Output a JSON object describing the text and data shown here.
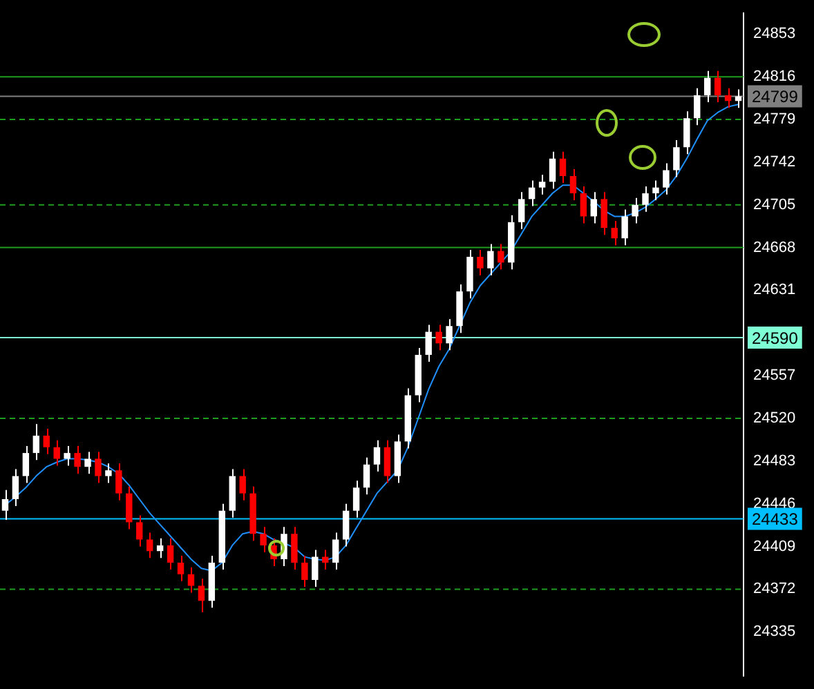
{
  "chart_data": {
    "type": "candlestick",
    "tick_labels": "y",
    "grid": false,
    "legend": false,
    "categories": [
      null,
      null,
      null,
      null,
      null,
      null,
      null,
      null,
      null,
      null,
      null,
      null,
      null,
      null,
      null,
      null,
      null,
      null,
      null,
      null,
      null,
      null,
      null,
      null,
      null,
      null,
      null,
      null,
      null,
      null,
      null,
      null,
      null,
      null,
      null,
      null,
      null,
      null,
      null,
      null,
      null,
      null,
      null,
      null,
      null,
      null,
      null,
      null,
      null,
      null,
      null,
      null,
      null,
      null,
      null,
      null,
      null,
      null,
      null,
      null,
      null,
      null,
      null,
      null,
      null,
      null,
      null,
      null,
      null,
      null,
      null,
      null
    ],
    "ylim": [
      24297,
      24871
    ],
    "yticks": [
      24335,
      24372,
      24409,
      24446,
      24483,
      24520,
      24557,
      24631,
      24668,
      24705,
      24742,
      24779,
      24816,
      24853
    ],
    "ohlc": [
      [
        24440,
        24458,
        24432,
        24450
      ],
      [
        24450,
        24476,
        24444,
        24470
      ],
      [
        24470,
        24496,
        24464,
        24490
      ],
      [
        24490,
        24515,
        24484,
        24505
      ],
      [
        24505,
        24511,
        24489,
        24495
      ],
      [
        24495,
        24501,
        24479,
        24485
      ],
      [
        24485,
        24496,
        24479,
        24490
      ],
      [
        24490,
        24496,
        24472,
        24478
      ],
      [
        24478,
        24491,
        24472,
        24485
      ],
      [
        24485,
        24491,
        24464,
        24470
      ],
      [
        24470,
        24481,
        24464,
        24475
      ],
      [
        24475,
        24481,
        24449,
        24455
      ],
      [
        24455,
        24461,
        24424,
        24430
      ],
      [
        24430,
        24436,
        24409,
        24415
      ],
      [
        24415,
        24421,
        24399,
        24405
      ],
      [
        24405,
        24416,
        24399,
        24410
      ],
      [
        24410,
        24416,
        24389,
        24395
      ],
      [
        24395,
        24401,
        24379,
        24385
      ],
      [
        24385,
        24391,
        24369,
        24375
      ],
      [
        24375,
        24381,
        24352,
        24362
      ],
      [
        24362,
        24401,
        24356,
        24395
      ],
      [
        24395,
        24446,
        24389,
        24440
      ],
      [
        24440,
        24476,
        24434,
        24470
      ],
      [
        24470,
        24476,
        24449,
        24455
      ],
      [
        24455,
        24461,
        24414,
        24420
      ],
      [
        24420,
        24426,
        24404,
        24410
      ],
      [
        24410,
        24416,
        24392,
        24398
      ],
      [
        24398,
        24426,
        24392,
        24420
      ],
      [
        24420,
        24426,
        24389,
        24395
      ],
      [
        24395,
        24401,
        24374,
        24380
      ],
      [
        24380,
        24406,
        24374,
        24400
      ],
      [
        24400,
        24406,
        24389,
        24395
      ],
      [
        24395,
        24421,
        24389,
        24415
      ],
      [
        24415,
        24446,
        24409,
        24440
      ],
      [
        24440,
        24466,
        24434,
        24460
      ],
      [
        24460,
        24486,
        24454,
        24480
      ],
      [
        24480,
        24501,
        24474,
        24495
      ],
      [
        24495,
        24501,
        24464,
        24470
      ],
      [
        24470,
        24506,
        24464,
        24500
      ],
      [
        24500,
        24546,
        24494,
        24540
      ],
      [
        24540,
        24581,
        24534,
        24575
      ],
      [
        24575,
        24601,
        24569,
        24595
      ],
      [
        24595,
        24601,
        24579,
        24585
      ],
      [
        24585,
        24606,
        24579,
        24600
      ],
      [
        24600,
        24636,
        24594,
        24630
      ],
      [
        24630,
        24666,
        24624,
        24660
      ],
      [
        24660,
        24666,
        24644,
        24650
      ],
      [
        24650,
        24671,
        24644,
        24665
      ],
      [
        24665,
        24671,
        24649,
        24655
      ],
      [
        24655,
        24696,
        24649,
        24690
      ],
      [
        24690,
        24716,
        24684,
        24710
      ],
      [
        24710,
        24726,
        24704,
        24720
      ],
      [
        24720,
        24731,
        24714,
        24725
      ],
      [
        24725,
        24751,
        24719,
        24745
      ],
      [
        24745,
        24751,
        24724,
        24730
      ],
      [
        24730,
        24736,
        24709,
        24715
      ],
      [
        24715,
        24721,
        24689,
        24695
      ],
      [
        24695,
        24716,
        24689,
        24710
      ],
      [
        24710,
        24716,
        24679,
        24685
      ],
      [
        24685,
        24691,
        24670,
        24676
      ],
      [
        24676,
        24701,
        24670,
        24695
      ],
      [
        24695,
        24711,
        24689,
        24705
      ],
      [
        24705,
        24721,
        24699,
        24715
      ],
      [
        24715,
        24726,
        24709,
        24720
      ],
      [
        24720,
        24741,
        24714,
        24735
      ],
      [
        24735,
        24761,
        24729,
        24755
      ],
      [
        24755,
        24786,
        24749,
        24780
      ],
      [
        24780,
        24806,
        24774,
        24800
      ],
      [
        24800,
        24821,
        24794,
        24815
      ],
      [
        24815,
        24821,
        24794,
        24800
      ],
      [
        24800,
        24806,
        24789,
        24795
      ],
      [
        24795,
        24805,
        24789,
        24799
      ]
    ],
    "colors": [
      "#ffffff",
      "#ffffff",
      "#ffffff",
      "#ffffff",
      "#ff0000",
      "#ff0000",
      "#ffffff",
      "#ff0000",
      "#ffffff",
      "#ff0000",
      "#ffffff",
      "#ff0000",
      "#ff0000",
      "#ff0000",
      "#ff0000",
      "#ffffff",
      "#ff0000",
      "#ff0000",
      "#ff0000",
      "#ff0000",
      "#ffffff",
      "#ffffff",
      "#ffffff",
      "#ff0000",
      "#ff0000",
      "#ff0000",
      "#ff0000",
      "#ffffff",
      "#ff0000",
      "#ff0000",
      "#ffffff",
      "#ff0000",
      "#ffffff",
      "#ffffff",
      "#ffffff",
      "#ffffff",
      "#ffffff",
      "#ff0000",
      "#ffffff",
      "#ffffff",
      "#ffffff",
      "#ffffff",
      "#ff0000",
      "#ffffff",
      "#ffffff",
      "#ffffff",
      "#ff0000",
      "#ffffff",
      "#ff0000",
      "#ffffff",
      "#ffffff",
      "#ffffff",
      "#ffffff",
      "#ffffff",
      "#ff0000",
      "#ff0000",
      "#ff0000",
      "#ffffff",
      "#ff0000",
      "#ff0000",
      "#ffffff",
      "#ffffff",
      "#ffffff",
      "#ffffff",
      "#ffffff",
      "#ffffff",
      "#ffffff",
      "#ffffff",
      "#ffffff",
      "#ff0000",
      "#ff0000",
      "#ffffff"
    ],
    "series": [
      {
        "type": "line",
        "color": "#1e90ff",
        "values": [
          24445,
          24452,
          24460,
          24470,
          24478,
          24482,
          24485,
          24485,
          24484,
          24482,
          24478,
          24472,
          24462,
          24450,
          24438,
          24428,
          24418,
          24408,
          24398,
          24390,
          24388,
          24395,
          24410,
          24420,
          24422,
          24420,
          24415,
          24412,
          24408,
          24400,
          24398,
          24397,
          24400,
          24410,
          24425,
          24440,
          24455,
          24465,
          24475,
          24495,
          24520,
          24545,
          24565,
          24580,
          24600,
          24620,
          24635,
          24645,
          24655,
          24665,
          24680,
          24695,
          24705,
          24715,
          24722,
          24722,
          24715,
          24708,
          24700,
          24695,
          24695,
          24698,
          24703,
          24710,
          24718,
          24730,
          24745,
          24762,
          24778,
          24785,
          24790,
          24792
        ]
      }
    ],
    "ref_lines": [
      {
        "axis": "y",
        "value": 24799,
        "label": "24799",
        "color": "#808080"
      },
      {
        "axis": "y",
        "value": 24590,
        "label": "24590",
        "color": "#7fffd4"
      },
      {
        "axis": "y",
        "value": 24433,
        "label": "24433",
        "color": "#00bfff"
      },
      {
        "axis": "y",
        "value": 24816,
        "color": "#1e9e1e"
      },
      {
        "axis": "y",
        "value": 24668,
        "color": "#1e9e1e"
      },
      {
        "axis": "y",
        "value": 24779,
        "color": "#1e9e1e",
        "line_style": "dashed"
      },
      {
        "axis": "y",
        "value": 24705,
        "color": "#1e9e1e",
        "line_style": "dashed"
      },
      {
        "axis": "y",
        "value": 24520,
        "color": "#1e9e1e",
        "line_style": "dashed"
      },
      {
        "axis": "y",
        "value": 24372,
        "color": "#1e9e1e",
        "line_style": "dashed"
      }
    ]
  }
}
